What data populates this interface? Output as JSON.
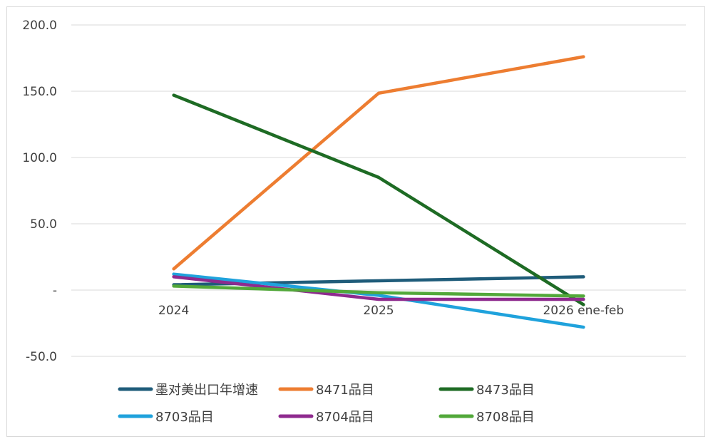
{
  "chart_data": {
    "type": "line",
    "title": "",
    "xlabel": "",
    "ylabel": "",
    "categories": [
      "2024",
      "2025",
      "2026 ene-feb"
    ],
    "ylim": [
      -50,
      200
    ],
    "yticks": [
      {
        "value": 200,
        "label": "200.0"
      },
      {
        "value": 150,
        "label": "150.0"
      },
      {
        "value": 100,
        "label": "100.0"
      },
      {
        "value": 50,
        "label": "50.0"
      },
      {
        "value": 0,
        "label": "-"
      },
      {
        "value": -50,
        "label": "-50.0"
      }
    ],
    "grid": true,
    "legend_position": "bottom",
    "series": [
      {
        "name": "墨对美出口年增速",
        "color": "#1f5c7a",
        "values": [
          4.0,
          7.0,
          10.0
        ]
      },
      {
        "name": "8471品目",
        "color": "#ed7d31",
        "values": [
          16.0,
          148.5,
          176.0
        ]
      },
      {
        "name": "8473品目",
        "color": "#1e6b24",
        "values": [
          147.0,
          85.0,
          -11.0
        ]
      },
      {
        "name": "8703品目",
        "color": "#1fa2dc",
        "values": [
          12.0,
          -4.0,
          -28.0
        ]
      },
      {
        "name": "8704品目",
        "color": "#8e2a8e",
        "values": [
          10.0,
          -7.0,
          -7.0
        ]
      },
      {
        "name": "8708品目",
        "color": "#52a83a",
        "values": [
          3.0,
          -2.0,
          -4.5
        ]
      }
    ]
  }
}
